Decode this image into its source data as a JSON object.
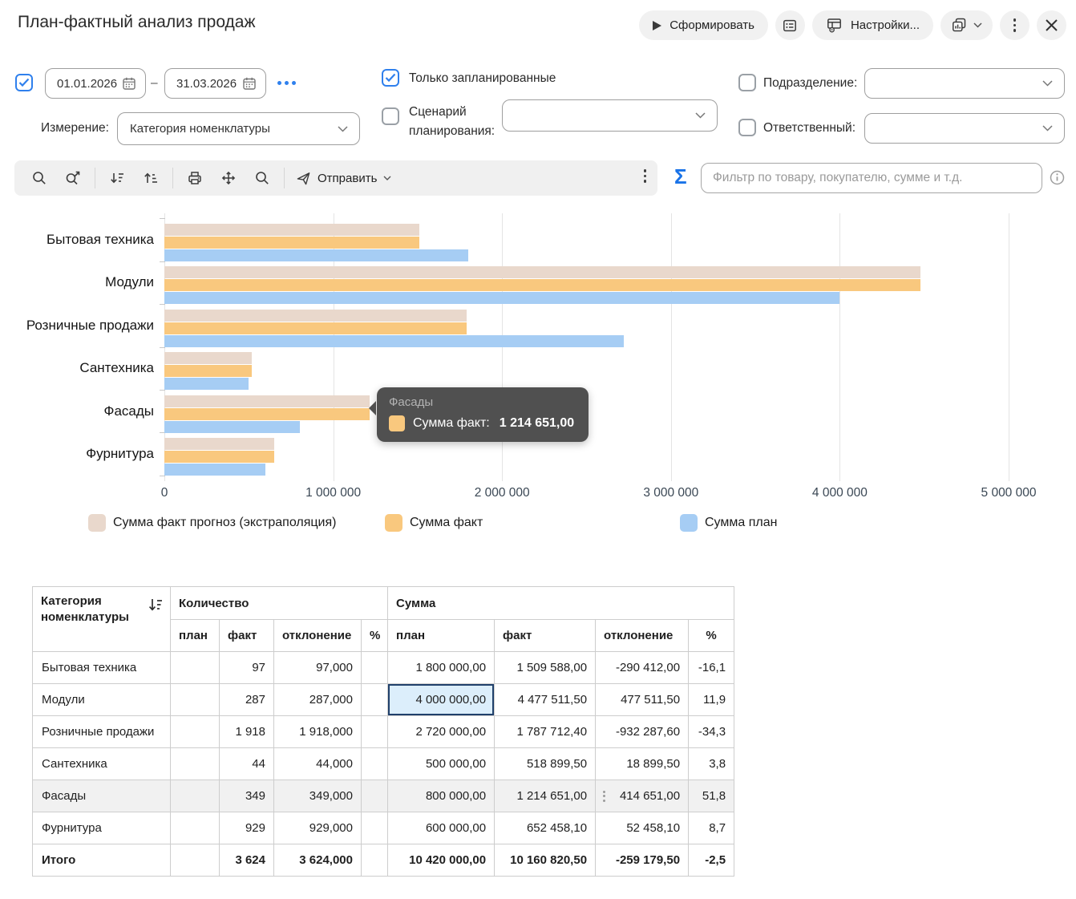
{
  "window": {
    "title": "План-фактный анализ продаж",
    "actions": {
      "generate": "Сформировать",
      "settings": "Настройки..."
    }
  },
  "filters": {
    "period": {
      "checked": true,
      "from": "01.01.2026",
      "separator": "–",
      "to": "31.03.2026"
    },
    "dimension": {
      "label": "Измерение:",
      "value": "Категория номенклатуры"
    },
    "only_planned": {
      "label": "Только запланированные",
      "checked": true
    },
    "scenario": {
      "label": "Сценарий планирования:",
      "checked": false,
      "value": ""
    },
    "department": {
      "label": "Подразделение:",
      "checked": false,
      "value": ""
    },
    "responsible": {
      "label": "Ответственный:",
      "checked": false,
      "value": ""
    }
  },
  "toolbar": {
    "send": "Отправить"
  },
  "search": {
    "placeholder": "Фильтр по товару, покупателю, сумме и т.д."
  },
  "icons": [
    "play-icon",
    "report-variants-icon",
    "settings-icon",
    "kebab-icon",
    "close-icon",
    "search-icon",
    "search-next-icon",
    "sort-desc-icon",
    "sort-asc-icon",
    "print-icon",
    "move-icon",
    "zoom-icon",
    "send-icon",
    "sigma-icon",
    "info-icon",
    "calendar-icon",
    "chevron-down-icon"
  ],
  "chart_data": {
    "type": "bar",
    "orientation": "horizontal",
    "title": "",
    "categories": [
      "Бытовая техника",
      "Модули",
      "Розничные продажи",
      "Сантехника",
      "Фасады",
      "Фурнитура"
    ],
    "series": [
      {
        "name": "Сумма факт прогноз (экстраполяция)",
        "color": "#e9d8cc",
        "values": [
          1509588,
          4477511.5,
          1787712.4,
          518899.5,
          1214651,
          652458.1
        ]
      },
      {
        "name": "Сумма факт",
        "color": "#f9c87e",
        "values": [
          1509588,
          4477511.5,
          1787712.4,
          518899.5,
          1214651,
          652458.1
        ]
      },
      {
        "name": "Сумма план",
        "color": "#a6cdf4",
        "values": [
          1800000,
          4000000,
          2720000,
          500000,
          800000,
          600000
        ]
      }
    ],
    "xlim": [
      0,
      5000000
    ],
    "x_ticks": [
      {
        "value": 0,
        "label": "0"
      },
      {
        "value": 1000000,
        "label": "1 000 000"
      },
      {
        "value": 2000000,
        "label": "2 000 000"
      },
      {
        "value": 3000000,
        "label": "3 000 000"
      },
      {
        "value": 4000000,
        "label": "4 000 000"
      },
      {
        "value": 5000000,
        "label": "5 000 000"
      }
    ],
    "grid": "vertical",
    "legend_position": "bottom"
  },
  "tooltip": {
    "category": "Фасады",
    "series_label": "Сумма факт:",
    "value": "1 214 651,00",
    "swatch_color": "#f9c87e"
  },
  "table": {
    "header": {
      "category": "Категория номенклатуры",
      "quantity_group": "Количество",
      "sum_group": "Сумма",
      "sub": [
        "план",
        "факт",
        "отклонение",
        "%"
      ]
    },
    "rows": [
      {
        "category": "Бытовая техника",
        "qty_plan": "",
        "qty_fact": "97",
        "qty_dev": "97,000",
        "qty_pct": "",
        "sum_plan": "1 800 000,00",
        "sum_fact": "1 509 588,00",
        "sum_dev": "-290 412,00",
        "sum_pct": "-16,1"
      },
      {
        "category": "Модули",
        "qty_plan": "",
        "qty_fact": "287",
        "qty_dev": "287,000",
        "qty_pct": "",
        "sum_plan": "4 000 000,00",
        "sum_fact": "4 477 511,50",
        "sum_dev": "477 511,50",
        "sum_pct": "11,9"
      },
      {
        "category": "Розничные продажи",
        "qty_plan": "",
        "qty_fact": "1 918",
        "qty_dev": "1 918,000",
        "qty_pct": "",
        "sum_plan": "2 720 000,00",
        "sum_fact": "1 787 712,40",
        "sum_dev": "-932 287,60",
        "sum_pct": "-34,3"
      },
      {
        "category": "Сантехника",
        "qty_plan": "",
        "qty_fact": "44",
        "qty_dev": "44,000",
        "qty_pct": "",
        "sum_plan": "500 000,00",
        "sum_fact": "518 899,50",
        "sum_dev": "18 899,50",
        "sum_pct": "3,8"
      },
      {
        "category": "Фасады",
        "qty_plan": "",
        "qty_fact": "349",
        "qty_dev": "349,000",
        "qty_pct": "",
        "sum_plan": "800 000,00",
        "sum_fact": "1 214 651,00",
        "sum_dev": "414 651,00",
        "sum_pct": "51,8"
      },
      {
        "category": "Фурнитура",
        "qty_plan": "",
        "qty_fact": "929",
        "qty_dev": "929,000",
        "qty_pct": "",
        "sum_plan": "600 000,00",
        "sum_fact": "652 458,10",
        "sum_dev": "52 458,10",
        "sum_pct": "8,7"
      }
    ],
    "total": {
      "category": "Итого",
      "qty_plan": "",
      "qty_fact": "3 624",
      "qty_dev": "3 624,000",
      "qty_pct": "",
      "sum_plan": "10 420 000,00",
      "sum_fact": "10 160 820,50",
      "sum_dev": "-259 179,50",
      "sum_pct": "-2,5"
    },
    "selected_cell": {
      "row_index": 1,
      "column": "sum_plan"
    },
    "hovered_row_index": 4,
    "hovered_menu_column": "sum_dev"
  },
  "colors": {
    "accent_blue": "#2f80ed",
    "sigma_blue": "#1a73e8",
    "series_forecast": "#e9d8cc",
    "series_fact": "#f9c87e",
    "series_plan": "#a6cdf4",
    "selected_cell_bg": "#dceefb",
    "selected_cell_border": "#20406b",
    "hover_row_bg": "#f1f1f1",
    "tooltip_bg": "#4a4a4a"
  }
}
